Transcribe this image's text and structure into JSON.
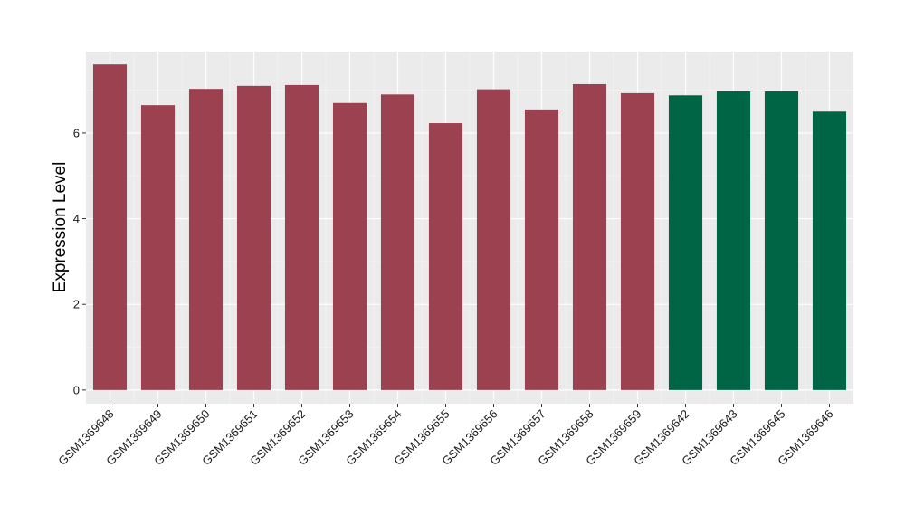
{
  "chart_data": {
    "type": "bar",
    "title": "",
    "xlabel": "",
    "ylabel": "Expression Level",
    "ylim": [
      -0.32,
      7.9
    ],
    "yticks": [
      0,
      2,
      4,
      6
    ],
    "grid": true,
    "legend": "none",
    "colors": {
      "panel_bg": "#ebebeb",
      "grid_major": "#ffffff",
      "grid_minor": "#f5f5f5",
      "group_a": "#9b4150",
      "group_b": "#006544"
    },
    "categories": [
      "GSM1369648",
      "GSM1369649",
      "GSM1369650",
      "GSM1369651",
      "GSM1369652",
      "GSM1369653",
      "GSM1369654",
      "GSM1369655",
      "GSM1369656",
      "GSM1369657",
      "GSM1369658",
      "GSM1369659",
      "GSM1369642",
      "GSM1369643",
      "GSM1369645",
      "GSM1369646"
    ],
    "values": [
      7.6,
      6.65,
      7.03,
      7.1,
      7.12,
      6.7,
      6.9,
      6.23,
      7.02,
      6.55,
      7.14,
      6.93,
      6.88,
      6.97,
      6.97,
      6.5
    ],
    "bar_groups": [
      "a",
      "a",
      "a",
      "a",
      "a",
      "a",
      "a",
      "a",
      "a",
      "a",
      "a",
      "a",
      "b",
      "b",
      "b",
      "b"
    ]
  }
}
